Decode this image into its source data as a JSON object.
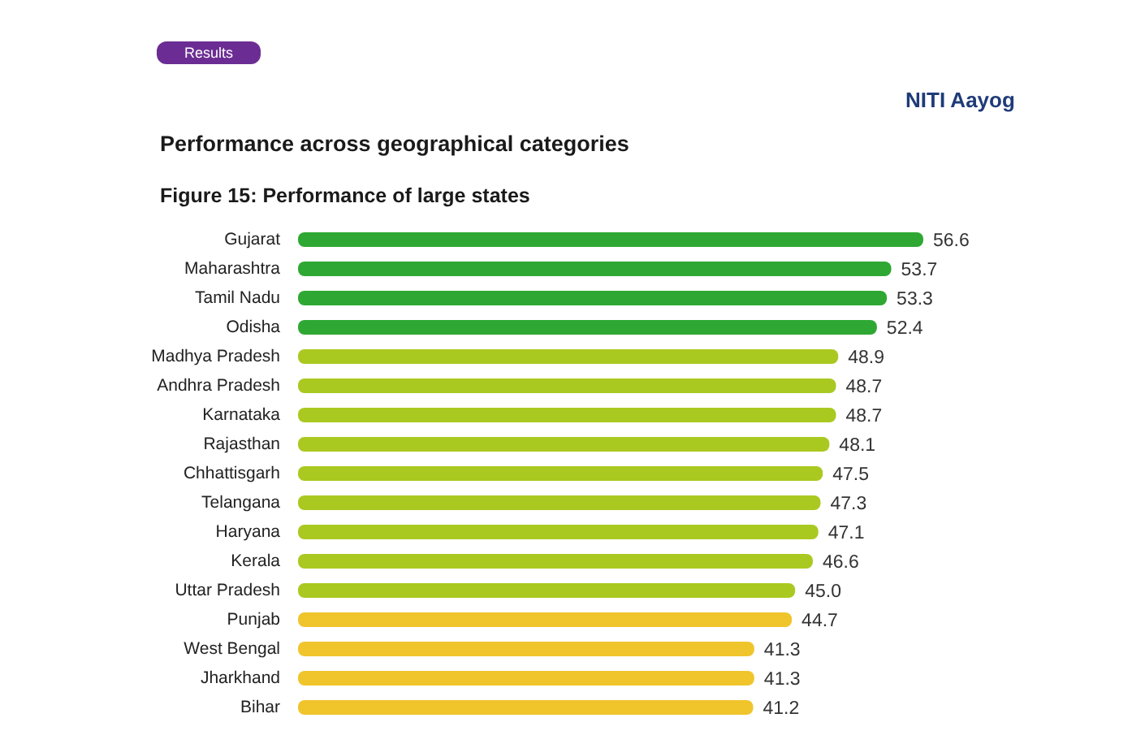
{
  "chart_data": {
    "type": "bar",
    "orientation": "horizontal",
    "title": "Performance across geographical categories",
    "subtitle": "Figure 15: Performance of large states",
    "annotations": [
      "Results",
      "NITI Aayog"
    ],
    "categories": [
      "Gujarat",
      "Maharashtra",
      "Tamil Nadu",
      "Odisha",
      "Madhya Pradesh",
      "Andhra Pradesh",
      "Karnataka",
      "Rajasthan",
      "Chhattisgarh",
      "Telangana",
      "Haryana",
      "Kerala",
      "Uttar Pradesh",
      "Punjab",
      "West Bengal",
      "Jharkhand",
      "Bihar"
    ],
    "values": [
      56.6,
      53.7,
      53.3,
      52.4,
      48.9,
      48.7,
      48.7,
      48.1,
      47.5,
      47.3,
      47.1,
      46.6,
      45.0,
      44.7,
      41.3,
      41.3,
      41.2
    ],
    "value_labels": [
      "56.6",
      "53.7",
      "53.3",
      "52.4",
      "48.9",
      "48.7",
      "48.7",
      "48.1",
      "47.5",
      "47.3",
      "47.1",
      "46.6",
      "45.0",
      "44.7",
      "41.3",
      "41.3",
      "41.2"
    ],
    "colors": [
      "#2ea833",
      "#2ea833",
      "#2ea833",
      "#2ea833",
      "#a9c920",
      "#a9c920",
      "#a9c920",
      "#a9c920",
      "#a9c920",
      "#a9c920",
      "#a9c920",
      "#a9c920",
      "#a9c920",
      "#f0c52c",
      "#f0c52c",
      "#f0c52c",
      "#f0c52c"
    ],
    "tick_labels": "y"
  }
}
